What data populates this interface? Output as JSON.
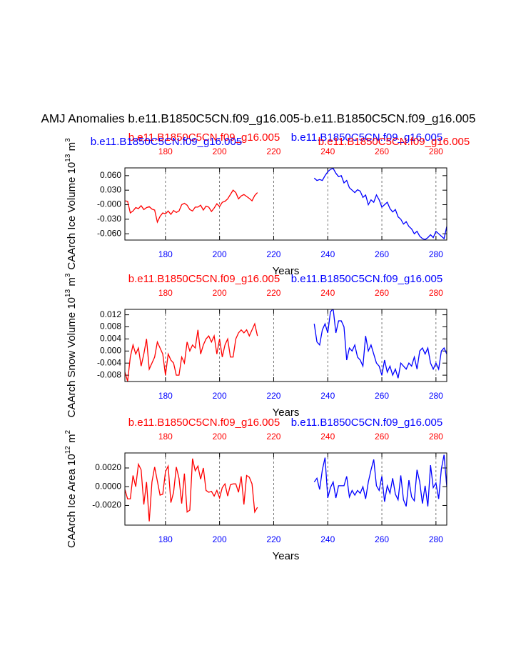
{
  "title": "AMJ Anomalies b.e11.B1850C5CN.f09_g16.005-b.e11.B1850C5CN.f09_g16.005",
  "chart_data": [
    {
      "type": "line",
      "titles": [
        {
          "text": "b.e11.B1850C5CN.f09_g16.005",
          "color": "#ff0000"
        },
        {
          "text": "b.e11.B1850C5CN.f09_g16.005",
          "color": "#0000ff"
        },
        {
          "text": "b.e11.B1850C5CN.f09_g16.005",
          "color": "#0000ff"
        },
        {
          "text": "b.e11.B1850C5CN.f09_g16.005",
          "color": "#ff0000"
        }
      ],
      "ylabel": [
        "CAArch Ice Volume 10",
        "13",
        " m",
        "3"
      ],
      "xlabel": "Years",
      "xlim": [
        165,
        284
      ],
      "xticks": [
        180,
        200,
        220,
        240,
        260,
        280
      ],
      "top_tick_color": "#ff0000",
      "bottom_tick_color": "#0000ff",
      "ylim": [
        -0.073,
        0.076
      ],
      "yticks": [
        {
          "value": 0.06,
          "label": "0.060"
        },
        {
          "value": 0.03,
          "label": "0.030"
        },
        {
          "value": 0,
          "label": "-0.000"
        },
        {
          "value": -0.03,
          "label": "-0.030"
        },
        {
          "value": -0.06,
          "label": "-0.060"
        }
      ],
      "grid": true,
      "series": [
        {
          "color": "#ff0000",
          "x": [
            165,
            166,
            167,
            168,
            169,
            170,
            171,
            172,
            173,
            174,
            175,
            176,
            177,
            178,
            179,
            180,
            181,
            182,
            183,
            184,
            185,
            186,
            187,
            188,
            189,
            190,
            191,
            192,
            193,
            194,
            195,
            196,
            197,
            198,
            199,
            200,
            201,
            202,
            203,
            204,
            205,
            206,
            207,
            208,
            209,
            210,
            211,
            212,
            213,
            214
          ],
          "values": [
            0.008,
            0.007,
            -0.017,
            -0.013,
            -0.006,
            -0.008,
            -0.002,
            -0.01,
            -0.006,
            -0.004,
            -0.009,
            -0.011,
            -0.036,
            -0.024,
            -0.017,
            -0.019,
            -0.013,
            -0.02,
            -0.012,
            -0.016,
            -0.013,
            0.0,
            0.003,
            -0.001,
            -0.01,
            -0.013,
            -0.005,
            -0.005,
            -0.001,
            -0.011,
            -0.003,
            -0.005,
            -0.014,
            -0.007,
            0.002,
            -0.004,
            0.005,
            0.007,
            0.012,
            0.021,
            0.03,
            0.025,
            0.012,
            0.018,
            0.021,
            0.017,
            0.013,
            0.008,
            0.019,
            0.025
          ]
        },
        {
          "color": "#0000ff",
          "x": [
            235,
            236,
            237,
            238,
            239,
            240,
            241,
            242,
            243,
            244,
            245,
            246,
            247,
            248,
            249,
            250,
            251,
            252,
            253,
            254,
            255,
            256,
            257,
            258,
            259,
            260,
            261,
            262,
            263,
            264,
            265,
            266,
            267,
            268,
            269,
            270,
            271,
            272,
            273,
            274,
            275,
            276,
            277,
            278,
            279,
            280,
            281,
            282,
            283,
            284
          ],
          "values": [
            0.055,
            0.05,
            0.052,
            0.05,
            0.06,
            0.068,
            0.073,
            0.075,
            0.065,
            0.058,
            0.06,
            0.045,
            0.05,
            0.035,
            0.03,
            0.025,
            0.031,
            0.028,
            0.015,
            0.02,
            0.0,
            0.01,
            0.005,
            0.02,
            0.01,
            -0.005,
            0.0,
            0.005,
            -0.008,
            -0.015,
            -0.01,
            -0.025,
            -0.03,
            -0.04,
            -0.035,
            -0.045,
            -0.05,
            -0.06,
            -0.055,
            -0.065,
            -0.07,
            -0.072,
            -0.068,
            -0.062,
            -0.068,
            -0.055,
            -0.06,
            -0.065,
            -0.07,
            -0.045
          ]
        }
      ]
    },
    {
      "type": "line",
      "titles": [
        {
          "text": "b.e11.B1850C5CN.f09_g16.005",
          "color": "#ff0000"
        },
        {
          "text": "b.e11.B1850C5CN.f09_g16.005",
          "color": "#0000ff"
        }
      ],
      "ylabel": [
        "CAArch Snow Volume 10",
        "13",
        " m",
        "3"
      ],
      "xlabel": "Years",
      "xlim": [
        165,
        284
      ],
      "xticks": [
        180,
        200,
        220,
        240,
        260,
        280
      ],
      "top_tick_color": "#ff0000",
      "bottom_tick_color": "#0000ff",
      "ylim": [
        -0.0101,
        0.0138
      ],
      "yticks": [
        0.012,
        0.008,
        0.004,
        {
          "value": 0,
          "label": "0.000"
        },
        -0.004,
        -0.008
      ],
      "grid": true,
      "series": [
        {
          "color": "#ff0000",
          "x": [
            165,
            166,
            167,
            168,
            169,
            170,
            171,
            172,
            173,
            174,
            175,
            176,
            177,
            178,
            179,
            180,
            181,
            182,
            183,
            184,
            185,
            186,
            187,
            188,
            189,
            190,
            191,
            192,
            193,
            194,
            195,
            196,
            197,
            198,
            199,
            200,
            201,
            202,
            203,
            204,
            205,
            206,
            207,
            208,
            209,
            210,
            211,
            212,
            213,
            214
          ],
          "values": [
            -0.007,
            -0.01,
            -0.002,
            0.002,
            -0.001,
            0.001,
            -0.005,
            -0.001,
            0.004,
            -0.006,
            -0.004,
            -0.002,
            0.003,
            0.001,
            -0.001,
            -0.008,
            -0.001,
            -0.003,
            -0.004,
            -0.008,
            -0.008,
            -0.002,
            -0.004,
            0.003,
            0.0,
            0.002,
            0.001,
            0.007,
            -0.001,
            0.002,
            0.004,
            0.005,
            0.003,
            0.005,
            -0.001,
            0.004,
            -0.002,
            0.002,
            0.004,
            -0.002,
            -0.002,
            0.004,
            0.006,
            0.007,
            0.006,
            0.007,
            0.005,
            0.007,
            0.009,
            0.005
          ]
        },
        {
          "color": "#0000ff",
          "x": [
            235,
            236,
            237,
            238,
            239,
            240,
            241,
            242,
            243,
            244,
            245,
            246,
            247,
            248,
            249,
            250,
            251,
            252,
            253,
            254,
            255,
            256,
            257,
            258,
            259,
            260,
            261,
            262,
            263,
            264,
            265,
            266,
            267,
            268,
            269,
            270,
            271,
            272,
            273,
            274,
            275,
            276,
            277,
            278,
            279,
            280,
            281,
            282,
            283,
            284
          ],
          "values": [
            0.009,
            0.003,
            0.002,
            0.007,
            0.009,
            0.006,
            0.013,
            0.014,
            0.006,
            0.01,
            0.01,
            0.008,
            -0.003,
            0.001,
            0.0,
            0.002,
            -0.002,
            -0.003,
            -0.005,
            0.005,
            0.0,
            0.002,
            -0.001,
            -0.004,
            -0.005,
            -0.008,
            -0.003,
            -0.007,
            -0.005,
            -0.008,
            -0.006,
            -0.009,
            -0.004,
            -0.005,
            -0.006,
            -0.004,
            -0.005,
            -0.002,
            -0.006,
            0.0,
            0.001,
            -0.001,
            0.001,
            -0.004,
            -0.006,
            -0.004,
            -0.006,
            0.0,
            0.001,
            -0.001
          ]
        }
      ]
    },
    {
      "type": "line",
      "titles": [
        {
          "text": "b.e11.B1850C5CN.f09_g16.005",
          "color": "#ff0000"
        },
        {
          "text": "b.e11.B1850C5CN.f09_g16.005",
          "color": "#0000ff"
        }
      ],
      "ylabel": [
        "CAArch Ice Area 10",
        "12",
        " m",
        "2"
      ],
      "xlabel": "Years",
      "xlim": [
        165,
        284
      ],
      "xticks": [
        180,
        200,
        220,
        240,
        260,
        280
      ],
      "top_tick_color": "#ff0000",
      "bottom_tick_color": "#0000ff",
      "ylim": [
        -0.0041,
        0.0036
      ],
      "yticks": [
        {
          "value": 0.002,
          "label": "0.0020"
        },
        {
          "value": 0,
          "label": "0.0000"
        },
        {
          "value": -0.002,
          "label": "-0.0020"
        }
      ],
      "grid": true,
      "series": [
        {
          "color": "#ff0000",
          "x": [
            165,
            166,
            167,
            168,
            169,
            170,
            171,
            172,
            173,
            174,
            175,
            176,
            177,
            178,
            179,
            180,
            181,
            182,
            183,
            184,
            185,
            186,
            187,
            188,
            189,
            190,
            191,
            192,
            193,
            194,
            195,
            196,
            197,
            198,
            199,
            200,
            201,
            202,
            203,
            204,
            205,
            206,
            207,
            208,
            209,
            210,
            211,
            212,
            213,
            214
          ],
          "values": [
            -0.0003,
            -0.0013,
            -0.0013,
            0.0012,
            0.0,
            0.0024,
            0.0018,
            -0.0019,
            0.0005,
            -0.0037,
            0.0005,
            0.0021,
            0.0006,
            -0.0009,
            -0.0008,
            0.0016,
            0.0022,
            -0.0017,
            -0.0006,
            0.0021,
            0.0009,
            -0.0018,
            0.0014,
            -0.0027,
            -0.0025,
            0.003,
            0.0017,
            0.0022,
            0.0008,
            0.002,
            -0.0004,
            -0.0006,
            -0.0005,
            -0.001,
            -0.0004,
            -0.0012,
            -0.0001,
            0.0003,
            -0.001,
            0.0002,
            0.0003,
            0.0003,
            -0.0006,
            0.0011,
            -0.0019,
            0.0012,
            0.001,
            0.0003,
            -0.0027,
            -0.0022
          ]
        },
        {
          "color": "#0000ff",
          "x": [
            235,
            236,
            237,
            238,
            239,
            240,
            241,
            242,
            243,
            244,
            245,
            246,
            247,
            248,
            249,
            250,
            251,
            252,
            253,
            254,
            255,
            256,
            257,
            258,
            259,
            260,
            261,
            262,
            263,
            264,
            265,
            266,
            267,
            268,
            269,
            270,
            271,
            272,
            273,
            274,
            275,
            276,
            277,
            278,
            279,
            280,
            281,
            282,
            283,
            284
          ],
          "values": [
            0.0005,
            0.0009,
            -0.0003,
            0.0018,
            0.0031,
            -0.0012,
            -0.0001,
            0.0005,
            -0.0012,
            0.0001,
            0.0001,
            0.0001,
            0.0011,
            -0.0011,
            -0.0004,
            -0.0009,
            -0.0004,
            -0.0007,
            0.0,
            -0.0013,
            0.0005,
            0.0018,
            0.0029,
            0.0001,
            -0.0004,
            0.0011,
            -0.0016,
            0.0001,
            -0.0007,
            0.0009,
            -0.0008,
            -0.0014,
            0.0012,
            -0.0014,
            -0.0021,
            0.0007,
            -0.0011,
            -0.0015,
            0.0018,
            0.0005,
            -0.0018,
            0.0001,
            -0.0021,
            0.0023,
            -0.0001,
            0.0004,
            -0.0013,
            0.0019,
            0.0034,
            0.0
          ]
        }
      ]
    }
  ]
}
